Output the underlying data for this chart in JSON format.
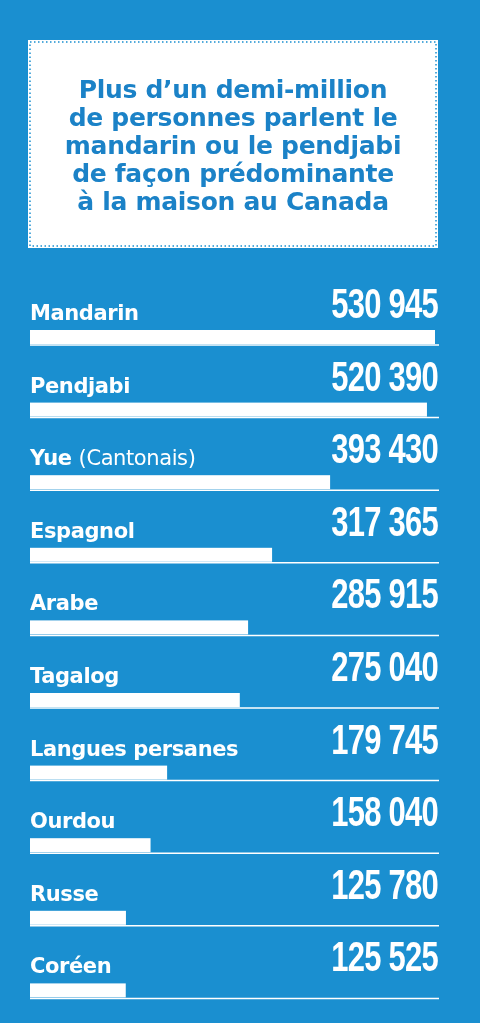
{
  "chart_data": {
    "type": "bar",
    "orientation": "horizontal",
    "title": "Plus d’un demi-million de personnes parlent le mandarin ou le pendjabi de façon prédominante à la maison au Canada",
    "categories": [
      "Mandarin",
      "Pendjabi",
      "Yue (Cantonais)",
      "Espagnol",
      "Arabe",
      "Tagalog",
      "Langues persanes",
      "Ourdou",
      "Russe",
      "Coréen"
    ],
    "values": [
      530945,
      520390,
      393430,
      317365,
      285915,
      275040,
      179745,
      158040,
      125780,
      125525
    ],
    "value_labels": [
      "530 945",
      "520 390",
      "393 430",
      "317 365",
      "285 915",
      "275 040",
      "179 745",
      "158 040",
      "125 780",
      "125 525"
    ],
    "color": "#ffffff",
    "tick_labels": "y"
  }
}
